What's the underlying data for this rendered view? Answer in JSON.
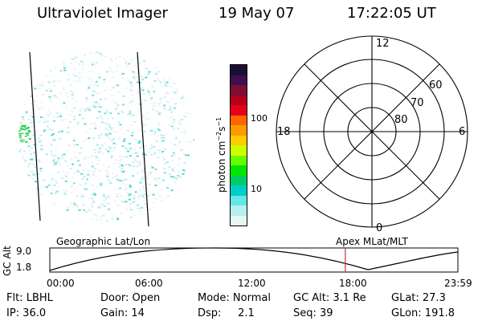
{
  "header": {
    "instrument": "Ultraviolet Imager",
    "date": "19 May 07",
    "time": "17:22:05 UT"
  },
  "colorbar": {
    "unit": "photon cm",
    "unit_sup1": "−2",
    "unit_mid": "s",
    "unit_sup2": "−1",
    "ticks": [
      "100",
      "10"
    ],
    "colors": [
      "#1a0f33",
      "#3d0f4d",
      "#7a0f33",
      "#b3001a",
      "#e6001a",
      "#ff6600",
      "#ff9900",
      "#ffcc00",
      "#ccff00",
      "#66ff00",
      "#00e600",
      "#00cc66",
      "#00cccc",
      "#66e6e6",
      "#b3f0f0",
      "#e6f5f5"
    ]
  },
  "polar_plot": {
    "mlt_labels": {
      "top": "12",
      "left": "18",
      "right": "6",
      "bottom": "0"
    },
    "lat_labels": [
      "60",
      "70",
      "80"
    ]
  },
  "timeline": {
    "left_label": "Geographic Lat/Lon",
    "right_label": "Apex MLat/MLT",
    "y_axis_label": "GC Alt",
    "y_ticks": [
      "9.0",
      "1.8"
    ],
    "x_ticks": [
      "00:00",
      "06:00",
      "12:00",
      "18:00",
      "23:59"
    ],
    "marker_time": "17:22",
    "marker_color": "#cc3333"
  },
  "info": {
    "row1": [
      "Flt: LBHL",
      "Door: Open",
      "Mode: Normal",
      "GC Alt: 3.1 Re",
      "GLat:  27.3"
    ],
    "row2": [
      "IP: 36.0",
      "Gain: 14",
      "Dsp:     2.1",
      "Seq: 39",
      "GLon: 191.8"
    ]
  }
}
